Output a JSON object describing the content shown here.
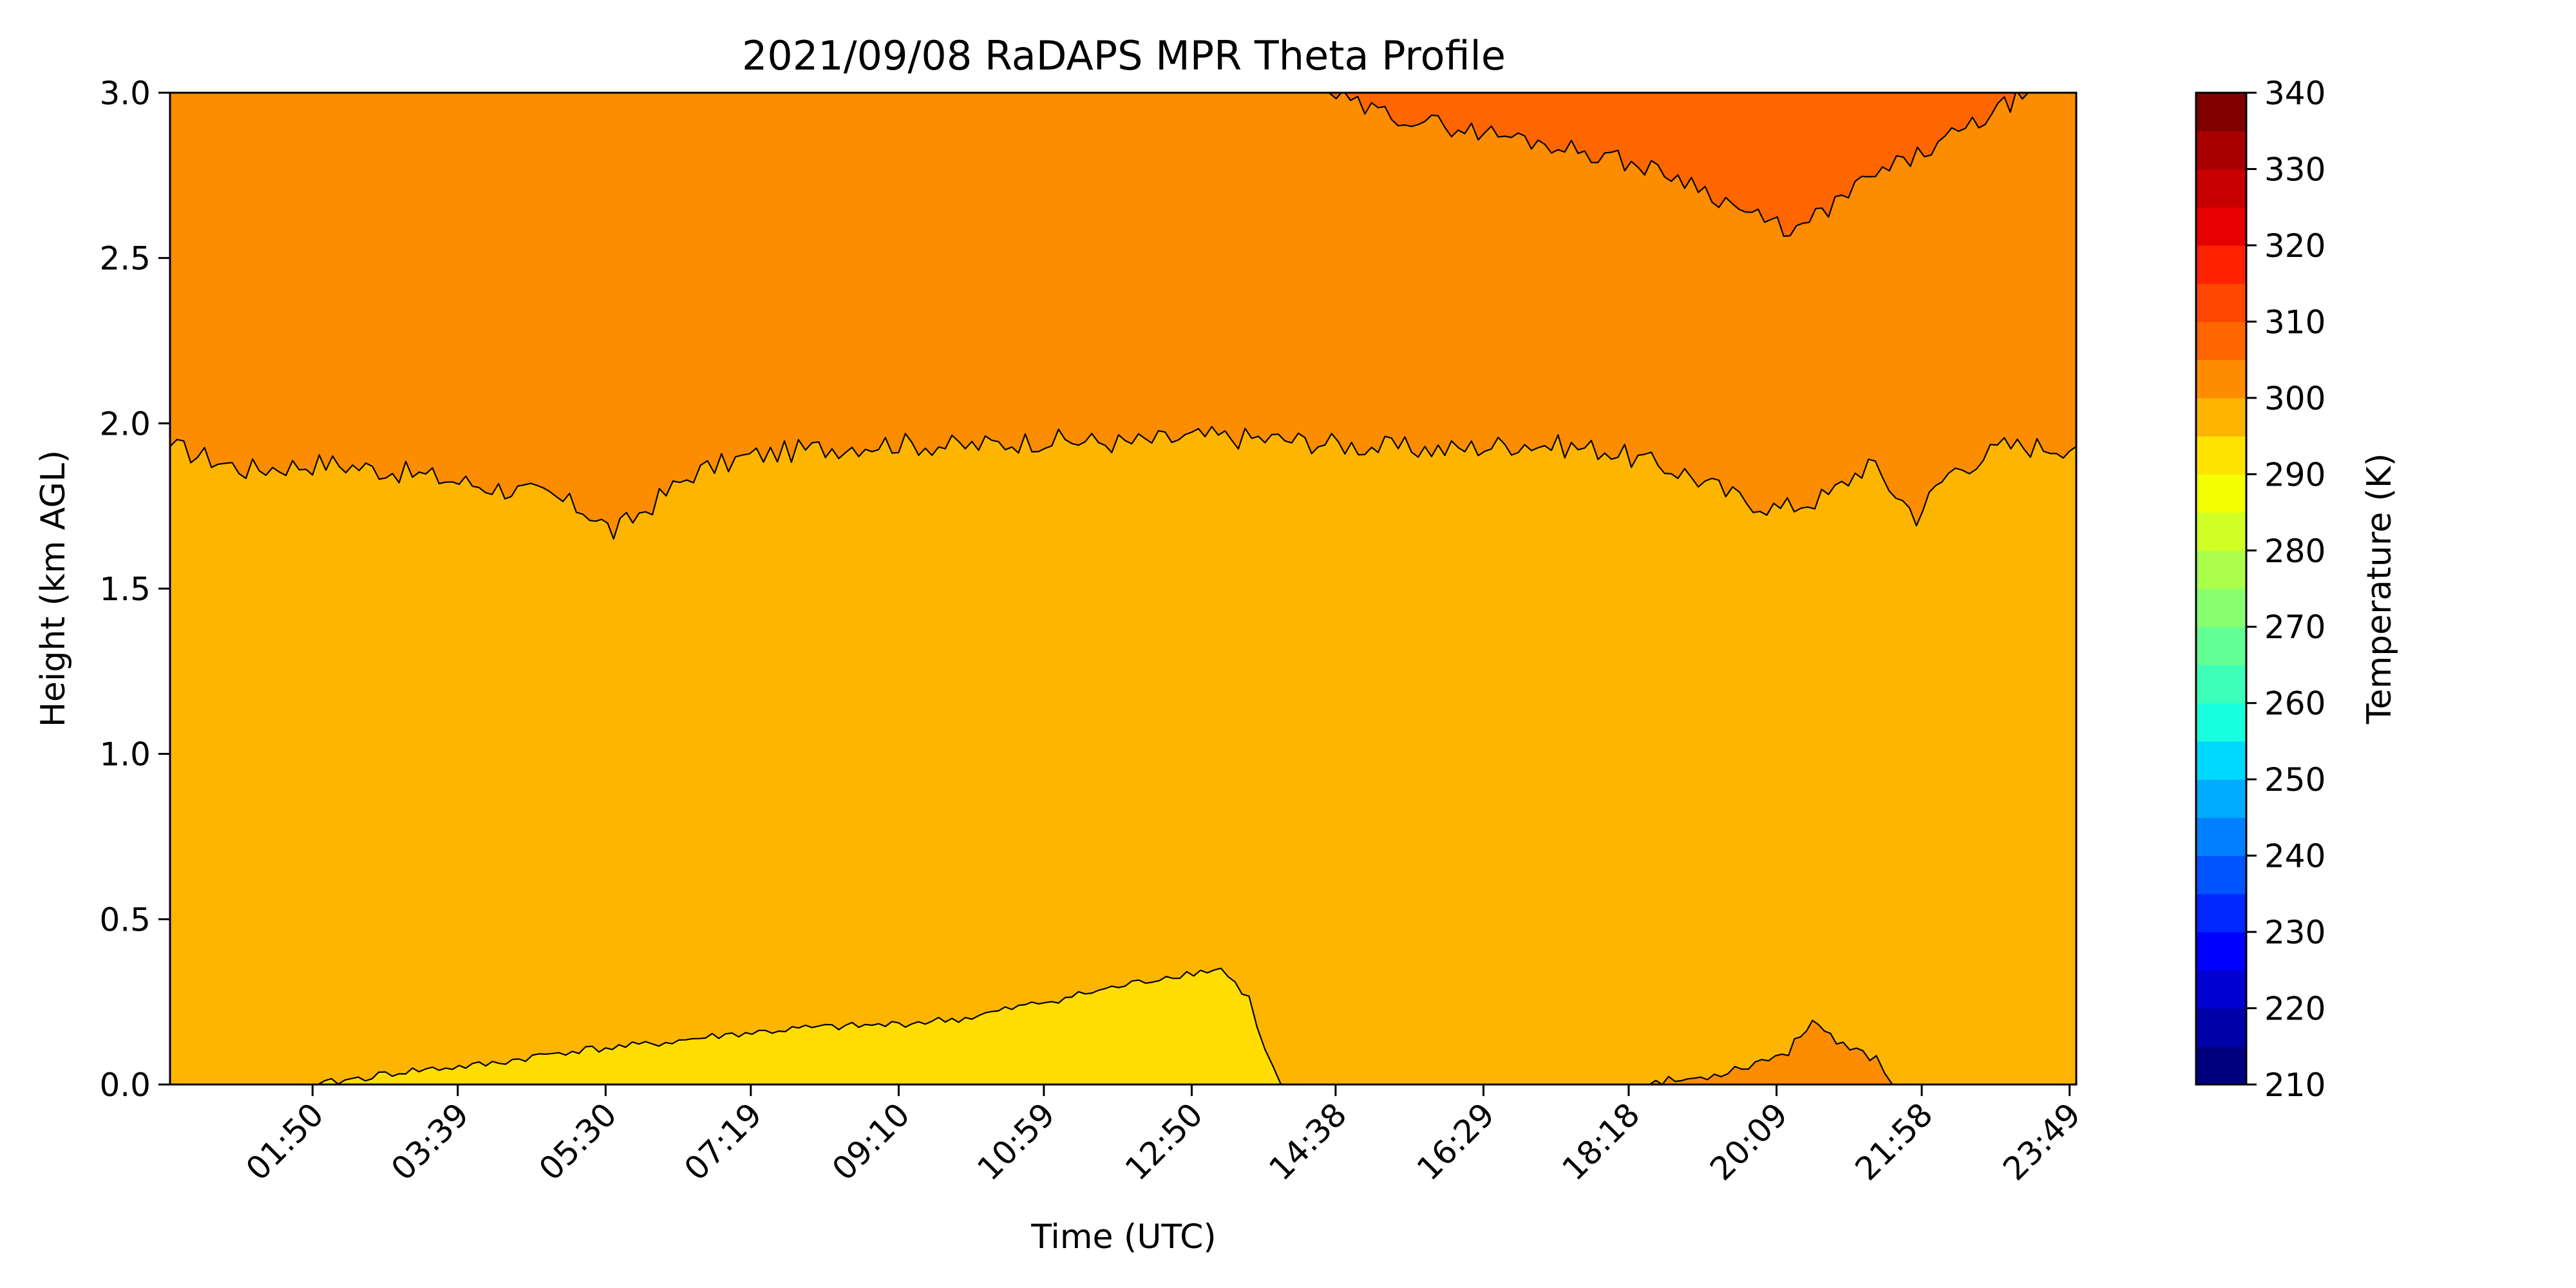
{
  "chart_data": {
    "type": "heatmap",
    "title": "2021/09/08 RaDAPS MPR Theta Profile",
    "xlabel": "Time (UTC)",
    "ylabel": "Height (km AGL)",
    "x_range_hours": [
      0.05,
      23.9
    ],
    "ylim": [
      0,
      3
    ],
    "x_ticks": [
      {
        "label": "01:50",
        "hours": 1.8333
      },
      {
        "label": "03:39",
        "hours": 3.65
      },
      {
        "label": "05:30",
        "hours": 5.5
      },
      {
        "label": "07:19",
        "hours": 7.3167
      },
      {
        "label": "09:10",
        "hours": 9.1667
      },
      {
        "label": "10:59",
        "hours": 10.9833
      },
      {
        "label": "12:50",
        "hours": 12.8333
      },
      {
        "label": "14:38",
        "hours": 14.6333
      },
      {
        "label": "16:29",
        "hours": 16.4833
      },
      {
        "label": "18:18",
        "hours": 18.3
      },
      {
        "label": "20:09",
        "hours": 20.15
      },
      {
        "label": "21:58",
        "hours": 21.9667
      },
      {
        "label": "23:49",
        "hours": 23.8167
      }
    ],
    "y_ticks": [
      {
        "label": "0.0",
        "value": 0.0
      },
      {
        "label": "0.5",
        "value": 0.5
      },
      {
        "label": "1.0",
        "value": 1.0
      },
      {
        "label": "1.5",
        "value": 1.5
      },
      {
        "label": "2.0",
        "value": 2.0
      },
      {
        "label": "2.5",
        "value": 2.5
      },
      {
        "label": "3.0",
        "value": 3.0
      }
    ],
    "colorbar": {
      "label": "Temperature (K)",
      "vmin": 210,
      "vmax": 340,
      "tick_labels": [
        "210",
        "220",
        "230",
        "240",
        "250",
        "260",
        "270",
        "280",
        "290",
        "300",
        "310",
        "320",
        "330",
        "340"
      ],
      "tick_values": [
        210,
        220,
        230,
        240,
        250,
        260,
        270,
        280,
        290,
        300,
        310,
        320,
        330,
        340
      ],
      "levels": [
        210,
        215,
        220,
        225,
        230,
        235,
        240,
        245,
        250,
        255,
        260,
        265,
        270,
        275,
        280,
        285,
        290,
        295,
        300,
        305,
        310,
        315,
        320,
        325,
        330,
        335,
        340
      ],
      "colors": [
        "#00007F",
        "#0000A9",
        "#0000D3",
        "#0000FE",
        "#0028FF",
        "#0054FF",
        "#0080FF",
        "#00ACFF",
        "#00D8FF",
        "#18FFDE",
        "#3DFFB9",
        "#62FF94",
        "#87FF6F",
        "#ABFF4A",
        "#D0FF26",
        "#F5FF01",
        "#FFE400",
        "#FFB400",
        "#FF8C00",
        "#FF6600",
        "#FF4700",
        "#FF2200",
        "#E60000",
        "#C80000",
        "#A80000",
        "#800000"
      ]
    },
    "fill_bands": [
      {
        "range_K": [
          295,
          300
        ],
        "color": "#FFDD00"
      },
      {
        "range_K": [
          300,
          305
        ],
        "color": "#FDB500"
      },
      {
        "range_K": [
          305,
          310
        ],
        "color": "#FC8C00"
      },
      {
        "range_K": [
          310,
          315
        ],
        "color": "#FF6600"
      }
    ],
    "contours": {
      "level_305K": [
        [
          0.05,
          1.93
        ],
        [
          1.0,
          1.86
        ],
        [
          2.0,
          1.88
        ],
        [
          3.0,
          1.85
        ],
        [
          4.0,
          1.81
        ],
        [
          4.8,
          1.78
        ],
        [
          5.3,
          1.73
        ],
        [
          5.6,
          1.67
        ],
        [
          6.0,
          1.74
        ],
        [
          6.6,
          1.85
        ],
        [
          7.3,
          1.9
        ],
        [
          8.0,
          1.92
        ],
        [
          9.0,
          1.94
        ],
        [
          10.0,
          1.93
        ],
        [
          11.0,
          1.95
        ],
        [
          12.0,
          1.94
        ],
        [
          13.0,
          1.96
        ],
        [
          14.0,
          1.95
        ],
        [
          15.0,
          1.93
        ],
        [
          16.0,
          1.92
        ],
        [
          17.0,
          1.94
        ],
        [
          18.0,
          1.92
        ],
        [
          19.0,
          1.85
        ],
        [
          19.6,
          1.78
        ],
        [
          20.2,
          1.74
        ],
        [
          20.8,
          1.78
        ],
        [
          21.3,
          1.88
        ],
        [
          21.9,
          1.72
        ],
        [
          22.3,
          1.85
        ],
        [
          23.0,
          1.93
        ],
        [
          23.9,
          1.93
        ]
      ],
      "level_310K": [
        [
          14.55,
          3.0
        ],
        [
          15.0,
          2.95
        ],
        [
          16.0,
          2.9
        ],
        [
          17.0,
          2.86
        ],
        [
          18.0,
          2.81
        ],
        [
          19.0,
          2.74
        ],
        [
          19.6,
          2.66
        ],
        [
          20.0,
          2.61
        ],
        [
          20.4,
          2.58
        ],
        [
          20.8,
          2.65
        ],
        [
          21.3,
          2.74
        ],
        [
          22.0,
          2.82
        ],
        [
          22.6,
          2.9
        ],
        [
          23.0,
          2.96
        ],
        [
          23.3,
          3.0
        ]
      ],
      "level_300K": [
        [
          1.9,
          0.0
        ],
        [
          3.0,
          0.04
        ],
        [
          4.0,
          0.06
        ],
        [
          5.0,
          0.1
        ],
        [
          6.0,
          0.12
        ],
        [
          7.0,
          0.15
        ],
        [
          8.0,
          0.17
        ],
        [
          9.0,
          0.18
        ],
        [
          10.0,
          0.2
        ],
        [
          11.0,
          0.25
        ],
        [
          12.0,
          0.3
        ],
        [
          12.6,
          0.33
        ],
        [
          13.2,
          0.35
        ],
        [
          13.55,
          0.26
        ],
        [
          13.75,
          0.1
        ],
        [
          13.95,
          0.0
        ]
      ],
      "level_305K_bottom": [
        [
          18.4,
          0.0
        ],
        [
          19.2,
          0.02
        ],
        [
          19.8,
          0.06
        ],
        [
          20.3,
          0.1
        ],
        [
          20.6,
          0.2
        ],
        [
          20.9,
          0.12
        ],
        [
          21.4,
          0.08
        ],
        [
          21.6,
          0.0
        ]
      ]
    }
  }
}
